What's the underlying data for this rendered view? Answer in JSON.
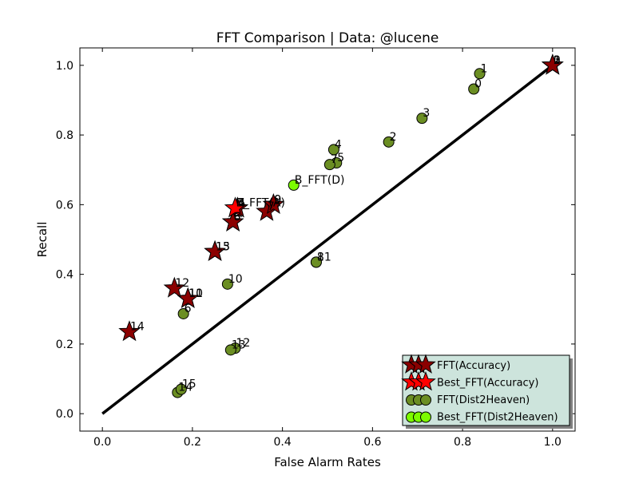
{
  "chart_data": {
    "type": "scatter",
    "title": "FFT Comparison |  Data: @lucene",
    "xlabel": "False Alarm Rates",
    "ylabel": "Recall",
    "xlim": [
      -0.05,
      1.05
    ],
    "ylim": [
      -0.05,
      1.05
    ],
    "x_ticks": [
      0.0,
      0.2,
      0.4,
      0.6,
      0.8,
      1.0
    ],
    "y_ticks": [
      0.0,
      0.2,
      0.4,
      0.6,
      0.8,
      1.0
    ],
    "x_tick_labels": [
      "0.0",
      "0.2",
      "0.4",
      "0.6",
      "0.8",
      "1.0"
    ],
    "y_tick_labels": [
      "0.0",
      "0.2",
      "0.4",
      "0.6",
      "0.8",
      "1.0"
    ],
    "grid": false,
    "legend_position": "bottom-right",
    "reference_line": {
      "x": [
        0,
        1
      ],
      "y": [
        0,
        1
      ],
      "color": "#000000"
    },
    "series": [
      {
        "name": "FFT(Accuracy)",
        "marker": "star",
        "color": "#8b0000",
        "points": [
          {
            "label": "0",
            "x": 1.0,
            "y": 1.0
          },
          {
            "label": "1",
            "x": 1.0,
            "y": 1.0
          },
          {
            "label": "2",
            "x": 1.0,
            "y": 1.0
          },
          {
            "label": "3",
            "x": 1.0,
            "y": 1.0
          },
          {
            "label": "4",
            "x": 0.3,
            "y": 0.59
          },
          {
            "label": "5",
            "x": 0.3,
            "y": 0.59
          },
          {
            "label": "6",
            "x": 0.29,
            "y": 0.55
          },
          {
            "label": "7",
            "x": 0.365,
            "y": 0.58
          },
          {
            "label": "8",
            "x": 0.29,
            "y": 0.55
          },
          {
            "label": "9",
            "x": 0.38,
            "y": 0.6
          },
          {
            "label": "10",
            "x": 0.19,
            "y": 0.33
          },
          {
            "label": "11",
            "x": 0.19,
            "y": 0.33
          },
          {
            "label": "12",
            "x": 0.16,
            "y": 0.36
          },
          {
            "label": "13",
            "x": 0.25,
            "y": 0.465
          },
          {
            "label": "14",
            "x": 0.06,
            "y": 0.235
          },
          {
            "label": "15",
            "x": 0.25,
            "y": 0.465
          }
        ]
      },
      {
        "name": "Best_FFT(Accuracy)",
        "marker": "star",
        "color": "#ff0000",
        "points": [
          {
            "label": "B_FFT(A)",
            "x": 0.295,
            "y": 0.59
          }
        ]
      },
      {
        "name": "FFT(Dist2Heaven)",
        "marker": "circle",
        "color": "#6b8e23",
        "points": [
          {
            "label": "0",
            "x": 0.825,
            "y": 0.932
          },
          {
            "label": "1",
            "x": 0.838,
            "y": 0.976
          },
          {
            "label": "2",
            "x": 0.636,
            "y": 0.78
          },
          {
            "label": "3",
            "x": 0.71,
            "y": 0.848
          },
          {
            "label": "4",
            "x": 0.514,
            "y": 0.758
          },
          {
            "label": "5",
            "x": 0.52,
            "y": 0.72
          },
          {
            "label": "6",
            "x": 0.18,
            "y": 0.287
          },
          {
            "label": "7",
            "x": 0.505,
            "y": 0.715
          },
          {
            "label": "8",
            "x": 0.475,
            "y": 0.435
          },
          {
            "label": "9",
            "x": 0.38,
            "y": 0.6
          },
          {
            "label": "10",
            "x": 0.278,
            "y": 0.372
          },
          {
            "label": "11",
            "x": 0.475,
            "y": 0.435
          },
          {
            "label": "12",
            "x": 0.295,
            "y": 0.188
          },
          {
            "label": "13",
            "x": 0.285,
            "y": 0.183
          },
          {
            "label": "14",
            "x": 0.167,
            "y": 0.061
          },
          {
            "label": "15",
            "x": 0.175,
            "y": 0.07
          }
        ]
      },
      {
        "name": "Best_FFT(Dist2Heaven)",
        "marker": "circle",
        "color": "#7cfc00",
        "points": [
          {
            "label": "B_FFT(D)",
            "x": 0.425,
            "y": 0.656
          }
        ]
      }
    ]
  }
}
